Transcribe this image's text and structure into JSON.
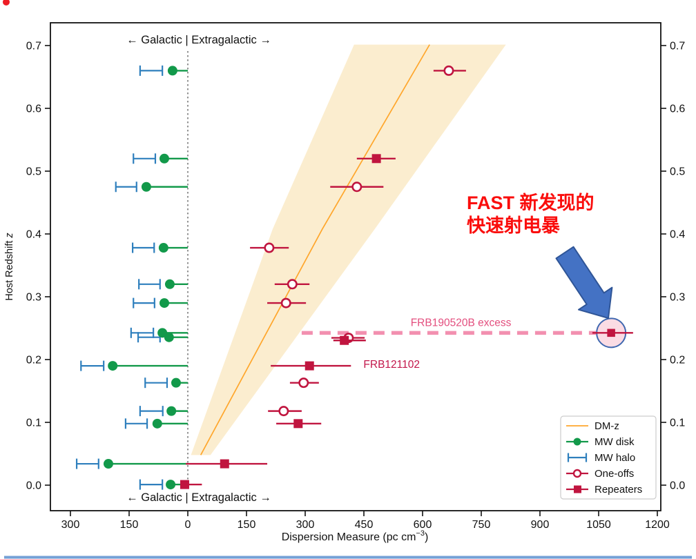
{
  "figure": {
    "background": "#ffffff",
    "bottom_bar_color": "#74A0D6",
    "recording_dot_color": "#EE1C25"
  },
  "chart_data": {
    "type": "scatter",
    "title": "",
    "xlabel": {
      "prefix": "Dispersion Measure (pc cm",
      "superscript": "−3",
      "suffix": ")"
    },
    "ylabel": {
      "prefix": "Host Redshift ",
      "italic_suffix": "z"
    },
    "zone_label_top": "←  Galactic | Extragalactic  →",
    "zone_label_bottom": "←  Galactic | Extragalactic  →",
    "x_ticks": [
      {
        "value": -300,
        "label": "300"
      },
      {
        "value": -150,
        "label": "150"
      },
      {
        "value": 0,
        "label": "0"
      },
      {
        "value": 150,
        "label": "150"
      },
      {
        "value": 300,
        "label": "300"
      },
      {
        "value": 450,
        "label": "450"
      },
      {
        "value": 600,
        "label": "600"
      },
      {
        "value": 750,
        "label": "750"
      },
      {
        "value": 900,
        "label": "900"
      },
      {
        "value": 1050,
        "label": "1050"
      },
      {
        "value": 1200,
        "label": "1200"
      }
    ],
    "y_ticks": [
      {
        "value": 0.0,
        "label": "0.0"
      },
      {
        "value": 0.1,
        "label": "0.1"
      },
      {
        "value": 0.2,
        "label": "0.2"
      },
      {
        "value": 0.3,
        "label": "0.3"
      },
      {
        "value": 0.4,
        "label": "0.4"
      },
      {
        "value": 0.5,
        "label": "0.5"
      },
      {
        "value": 0.6,
        "label": "0.6"
      },
      {
        "value": 0.7,
        "label": "0.7"
      }
    ],
    "xlim": [
      -351,
      1209
    ],
    "ylim": [
      -0.041,
      0.736
    ],
    "zero_line": {
      "dm": 0,
      "color": "#909090"
    },
    "dmz_relation": {
      "legend_label": "DM-z",
      "line_color": "#FFA62B",
      "band_fill": "#FBEDCF",
      "line": {
        "z": [
          0.048,
          0.408,
          0.7015
        ],
        "dm": [
          33,
          344,
          618
        ]
      },
      "band": {
        "z": [
          0.048,
          0.408,
          0.7015
        ],
        "dm_low": [
          8,
          217,
          425
        ],
        "dm_high": [
          58,
          478,
          813
        ]
      }
    },
    "series": {
      "mw_disk": {
        "label": "MW disk",
        "color": "#12994A",
        "points": [
          {
            "z": 0.66,
            "dm": -39
          },
          {
            "z": 0.52,
            "dm": -60
          },
          {
            "z": 0.475,
            "dm": -106
          },
          {
            "z": 0.378,
            "dm": -62
          },
          {
            "z": 0.32,
            "dm": -46
          },
          {
            "z": 0.29,
            "dm": -60
          },
          {
            "z": 0.2425,
            "dm": -65
          },
          {
            "z": 0.2355,
            "dm": -48
          },
          {
            "z": 0.19,
            "dm": -192
          },
          {
            "z": 0.163,
            "dm": -30
          },
          {
            "z": 0.118,
            "dm": -42
          },
          {
            "z": 0.098,
            "dm": -78
          },
          {
            "z": 0.034,
            "dm": -203
          },
          {
            "z": 0.001,
            "dm": -44
          }
        ]
      },
      "mw_halo": {
        "label": "MW halo",
        "color": "#2E7FBD",
        "points": [
          {
            "z": 0.66,
            "dm_low": -122,
            "dm_high": -65
          },
          {
            "z": 0.52,
            "dm_low": -139,
            "dm_high": -83
          },
          {
            "z": 0.475,
            "dm_low": -184,
            "dm_high": -131
          },
          {
            "z": 0.378,
            "dm_low": -141,
            "dm_high": -86
          },
          {
            "z": 0.32,
            "dm_low": -125,
            "dm_high": -71
          },
          {
            "z": 0.29,
            "dm_low": -139,
            "dm_high": -85
          },
          {
            "z": 0.2425,
            "dm_low": -145,
            "dm_high": -88
          },
          {
            "z": 0.2355,
            "dm_low": -127,
            "dm_high": -71
          },
          {
            "z": 0.19,
            "dm_low": -273,
            "dm_high": -215
          },
          {
            "z": 0.163,
            "dm_low": -109,
            "dm_high": -53
          },
          {
            "z": 0.118,
            "dm_low": -122,
            "dm_high": -64
          },
          {
            "z": 0.098,
            "dm_low": -159,
            "dm_high": -104
          },
          {
            "z": 0.034,
            "dm_low": -284,
            "dm_high": -228
          },
          {
            "z": 0.001,
            "dm_low": -122,
            "dm_high": -65
          }
        ]
      },
      "one_offs": {
        "label": "One-offs",
        "color": "#C0153F",
        "points": [
          {
            "z": 0.66,
            "dm": 667,
            "dm_low": 628,
            "dm_high": 711
          },
          {
            "z": 0.475,
            "dm": 432,
            "dm_low": 364,
            "dm_high": 500
          },
          {
            "z": 0.378,
            "dm": 208,
            "dm_low": 159,
            "dm_high": 258
          },
          {
            "z": 0.32,
            "dm": 267,
            "dm_low": 222,
            "dm_high": 311
          },
          {
            "z": 0.29,
            "dm": 251,
            "dm_low": 203,
            "dm_high": 302
          },
          {
            "z": 0.2345,
            "dm": 411,
            "dm_low": 367,
            "dm_high": 452
          },
          {
            "z": 0.163,
            "dm": 296,
            "dm_low": 261,
            "dm_high": 335
          },
          {
            "z": 0.118,
            "dm": 245,
            "dm_low": 205,
            "dm_high": 291
          }
        ]
      },
      "repeaters": {
        "label": "Repeaters",
        "color": "#C0153F",
        "points": [
          {
            "z": 0.52,
            "dm": 482,
            "dm_low": 432,
            "dm_high": 531
          },
          {
            "z": 0.2425,
            "dm": 1082,
            "dm_low": 1034,
            "dm_high": 1138,
            "highlight": true
          },
          {
            "z": 0.2305,
            "dm": 400,
            "dm_low": 372,
            "dm_high": 455
          },
          {
            "z": 0.19,
            "dm": 311,
            "dm_low": 212,
            "dm_high": 417
          },
          {
            "z": 0.098,
            "dm": 282,
            "dm_low": 226,
            "dm_high": 341
          },
          {
            "z": 0.034,
            "dm": 94,
            "dm_low": -5,
            "dm_high": 203
          },
          {
            "z": 0.001,
            "dm": -8,
            "dm_low": -18,
            "dm_high": 36
          }
        ]
      }
    },
    "legend": {
      "position": "lower right",
      "items": [
        {
          "key": "dmz",
          "label": "DM-z"
        },
        {
          "key": "mw_disk",
          "label": "MW disk"
        },
        {
          "key": "mw_halo",
          "label": "MW halo"
        },
        {
          "key": "one_offs",
          "label": "One-offs"
        },
        {
          "key": "repeaters",
          "label": "Repeaters"
        }
      ]
    },
    "annotations": {
      "excess_line": {
        "z": 0.2425,
        "dm_start": 291,
        "dm_end": 1043,
        "color": "#F290B0"
      },
      "excess_label": {
        "text": "FRB190520B excess",
        "dm": 698,
        "z": 0.2535,
        "color": "#E34E7E"
      },
      "frb121102_label": {
        "text": "FRB121102",
        "dm": 449,
        "z": 0.1868,
        "color": "#C2164A"
      },
      "fast_callout": {
        "lines": [
          "FAST 新发现的",
          "快速射电暴"
        ],
        "color": "#FA0D0C"
      },
      "highlight_circle": {
        "dm": 1082,
        "z": 0.2425,
        "fill": "#FBDCE4",
        "stroke": "#4068B0"
      },
      "arrow": {
        "fill": "#4472C4",
        "stroke": "#2F5597"
      }
    }
  }
}
